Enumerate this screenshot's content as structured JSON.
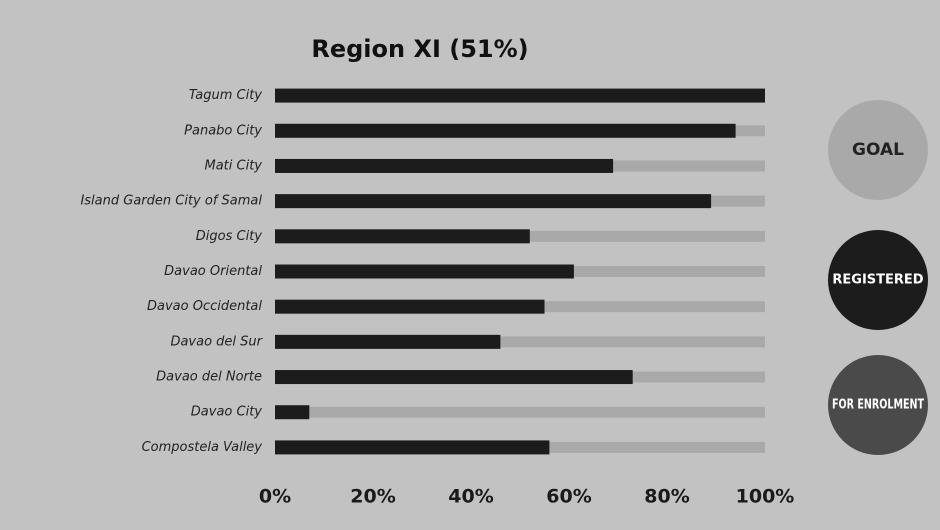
{
  "chart_data": {
    "type": "bar",
    "orientation": "horizontal",
    "title": "Region XI (51%)",
    "categories": [
      "Tagum City",
      "Panabo City",
      "Mati City",
      "Island Garden City of Samal",
      "Digos City",
      "Davao Oriental",
      "Davao Occidental",
      "Davao del Sur",
      "Davao del Norte",
      "Davao City",
      "Compostela Valley"
    ],
    "series": [
      {
        "name": "GOAL",
        "color": "#a9a9a9",
        "values": [
          100,
          100,
          100,
          100,
          100,
          100,
          100,
          100,
          100,
          100,
          100
        ]
      },
      {
        "name": "REGISTERED",
        "color": "#1c1c1c",
        "values": [
          100,
          94,
          69,
          89,
          52,
          61,
          55,
          46,
          73,
          7,
          56
        ]
      },
      {
        "name": "FOR ENROLMENT",
        "color": "#4a4a4a",
        "values": [
          null,
          null,
          null,
          null,
          null,
          null,
          null,
          null,
          null,
          null,
          null
        ]
      }
    ],
    "xlim": [
      0,
      100
    ],
    "xticks": [
      {
        "value": 0,
        "label": "0%"
      },
      {
        "value": 20,
        "label": "20%"
      },
      {
        "value": 40,
        "label": "40%"
      },
      {
        "value": 60,
        "label": "60%"
      },
      {
        "value": 80,
        "label": "80%"
      },
      {
        "value": 100,
        "label": "100%"
      }
    ]
  }
}
